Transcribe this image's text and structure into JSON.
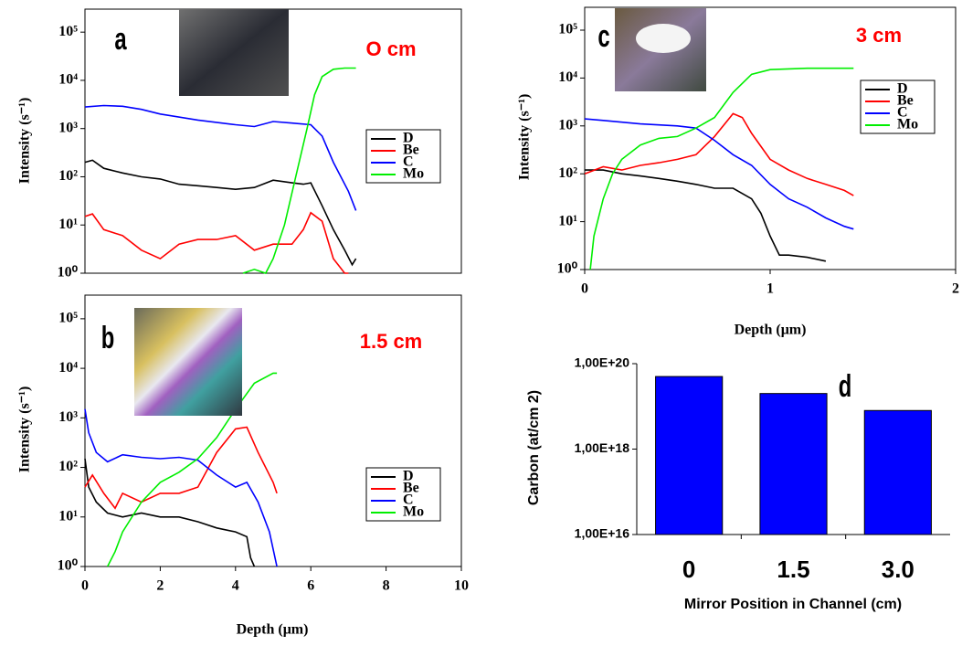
{
  "chart_data": [
    {
      "type": "line",
      "ylog": true,
      "annotations": [
        "a",
        "O cm"
      ],
      "ylabel": "Intensity (s⁻¹)",
      "xlim": [
        0,
        10
      ],
      "ylim": [
        1,
        300000
      ],
      "yticks": [
        {
          "value": 1,
          "label": "10⁰"
        },
        {
          "value": 10,
          "label": "10¹"
        },
        {
          "value": 100,
          "label": "10²"
        },
        {
          "value": 1000,
          "label": "10³"
        },
        {
          "value": 10000,
          "label": "10⁴"
        },
        {
          "value": 100000,
          "label": "10⁵"
        }
      ],
      "series": [
        {
          "name": "D",
          "color": "#000000",
          "x": [
            0,
            0.2,
            0.5,
            1,
            1.5,
            2,
            2.5,
            3,
            3.5,
            4,
            4.5,
            5,
            5.5,
            5.8,
            6,
            6.3,
            6.6,
            6.9,
            7.1,
            7.2
          ],
          "values": [
            200,
            220,
            150,
            120,
            100,
            90,
            70,
            65,
            60,
            55,
            60,
            85,
            75,
            70,
            75,
            25,
            8,
            3,
            1.5,
            2
          ]
        },
        {
          "name": "Be",
          "color": "#ff0000",
          "x": [
            0,
            0.2,
            0.5,
            1,
            1.5,
            2,
            2.5,
            3,
            3.5,
            4,
            4.5,
            5,
            5.5,
            5.8,
            6,
            6.3,
            6.6,
            6.9,
            7
          ],
          "values": [
            15,
            17,
            8,
            6,
            3,
            2,
            4,
            5,
            5,
            6,
            3,
            4,
            4,
            8,
            18,
            12,
            2,
            1,
            1
          ]
        },
        {
          "name": "C",
          "color": "#0000ff",
          "x": [
            0,
            0.5,
            1,
            1.5,
            2,
            3,
            4,
            4.5,
            5,
            5.5,
            6,
            6.3,
            6.6,
            7,
            7.2
          ],
          "values": [
            2800,
            3000,
            2900,
            2500,
            2000,
            1500,
            1200,
            1100,
            1400,
            1300,
            1200,
            700,
            200,
            50,
            20
          ]
        },
        {
          "name": "Mo",
          "color": "#00ee00",
          "x": [
            4.2,
            4.5,
            4.8,
            5,
            5.3,
            5.6,
            5.9,
            6.1,
            6.3,
            6.6,
            6.9,
            7.2
          ],
          "values": [
            1,
            1.2,
            1,
            2,
            10,
            100,
            1000,
            5000,
            12000,
            17000,
            18000,
            18000
          ]
        }
      ]
    },
    {
      "type": "line",
      "ylog": true,
      "annotations": [
        "b",
        "1.5 cm"
      ],
      "ylabel": "Intensity (s⁻¹)",
      "xlabel": "Depth (μm)",
      "xlim": [
        0,
        10
      ],
      "xticks": [
        0,
        2,
        4,
        6,
        8,
        10
      ],
      "ylim": [
        1,
        300000
      ],
      "yticks": [
        {
          "value": 1,
          "label": "10⁰"
        },
        {
          "value": 10,
          "label": "10¹"
        },
        {
          "value": 100,
          "label": "10²"
        },
        {
          "value": 1000,
          "label": "10³"
        },
        {
          "value": 10000,
          "label": "10⁴"
        },
        {
          "value": 100000,
          "label": "10⁵"
        }
      ],
      "series": [
        {
          "name": "D",
          "color": "#000000",
          "x": [
            0,
            0.1,
            0.3,
            0.6,
            1,
            1.5,
            2,
            2.5,
            3,
            3.5,
            4,
            4.3,
            4.4,
            4.5
          ],
          "values": [
            150,
            40,
            20,
            12,
            10,
            12,
            10,
            10,
            8,
            6,
            5,
            4,
            1.5,
            1
          ]
        },
        {
          "name": "Be",
          "color": "#ff0000",
          "x": [
            0,
            0.2,
            0.5,
            0.8,
            1,
            1.5,
            2,
            2.5,
            3,
            3.5,
            4,
            4.3,
            4.6,
            5,
            5.1
          ],
          "values": [
            40,
            70,
            30,
            15,
            30,
            20,
            30,
            30,
            40,
            200,
            600,
            650,
            200,
            50,
            30
          ]
        },
        {
          "name": "C",
          "color": "#0000ff",
          "x": [
            0,
            0.1,
            0.3,
            0.6,
            1,
            1.5,
            2,
            2.5,
            3,
            3.5,
            4,
            4.3,
            4.6,
            4.9,
            5.1
          ],
          "values": [
            1500,
            500,
            200,
            130,
            180,
            160,
            150,
            160,
            140,
            70,
            40,
            50,
            20,
            5,
            1
          ]
        },
        {
          "name": "Mo",
          "color": "#00ee00",
          "x": [
            0.6,
            0.8,
            1,
            1.5,
            2,
            2.5,
            3,
            3.5,
            4,
            4.5,
            5,
            5.1
          ],
          "values": [
            1,
            2,
            5,
            20,
            50,
            80,
            150,
            400,
            1500,
            5000,
            8000,
            8000
          ]
        }
      ]
    },
    {
      "type": "line",
      "ylog": true,
      "annotations": [
        "c",
        "3 cm"
      ],
      "ylabel": "Intensity (s⁻¹)",
      "xlabel": "Depth (μm)",
      "xlim": [
        0,
        2
      ],
      "xticks": [
        0,
        1,
        2
      ],
      "ylim": [
        1,
        300000
      ],
      "yticks": [
        {
          "value": 1,
          "label": "10⁰"
        },
        {
          "value": 10,
          "label": "10¹"
        },
        {
          "value": 100,
          "label": "10²"
        },
        {
          "value": 1000,
          "label": "10³"
        },
        {
          "value": 10000,
          "label": "10⁴"
        },
        {
          "value": 100000,
          "label": "10⁵"
        }
      ],
      "series": [
        {
          "name": "D",
          "color": "#000000",
          "x": [
            0,
            0.1,
            0.2,
            0.3,
            0.4,
            0.5,
            0.6,
            0.7,
            0.8,
            0.9,
            0.95,
            1,
            1.05,
            1.1,
            1.2,
            1.3
          ],
          "values": [
            120,
            120,
            100,
            90,
            80,
            70,
            60,
            50,
            50,
            30,
            15,
            5,
            2,
            2,
            1.8,
            1.5
          ]
        },
        {
          "name": "Be",
          "color": "#ff0000",
          "x": [
            0,
            0.1,
            0.2,
            0.3,
            0.4,
            0.5,
            0.6,
            0.7,
            0.8,
            0.85,
            0.9,
            1,
            1.1,
            1.2,
            1.3,
            1.4,
            1.45
          ],
          "values": [
            100,
            140,
            120,
            150,
            170,
            200,
            250,
            600,
            1800,
            1500,
            700,
            200,
            120,
            80,
            60,
            45,
            35
          ]
        },
        {
          "name": "C",
          "color": "#0000ff",
          "x": [
            0,
            0.1,
            0.2,
            0.3,
            0.4,
            0.5,
            0.6,
            0.7,
            0.8,
            0.9,
            1,
            1.1,
            1.2,
            1.3,
            1.4,
            1.45
          ],
          "values": [
            1400,
            1300,
            1200,
            1100,
            1050,
            1000,
            900,
            500,
            250,
            150,
            60,
            30,
            20,
            12,
            8,
            7
          ]
        },
        {
          "name": "Mo",
          "color": "#00ee00",
          "x": [
            0.03,
            0.05,
            0.1,
            0.15,
            0.2,
            0.3,
            0.4,
            0.5,
            0.6,
            0.7,
            0.8,
            0.9,
            1,
            1.2,
            1.45
          ],
          "values": [
            1,
            5,
            30,
            100,
            200,
            400,
            550,
            600,
            900,
            1500,
            5000,
            12000,
            15000,
            16000,
            16000
          ]
        }
      ]
    },
    {
      "type": "bar",
      "ylog": true,
      "annotations": [
        "d"
      ],
      "ylabel": "Carbon (at/cm 2)",
      "xlabel": "Mirror Position in Channel (cm)",
      "categories": [
        "0",
        "1.5",
        "3.0"
      ],
      "values": [
        5e+19,
        2e+19,
        8e+18
      ],
      "color": "#0000ff",
      "ylim": [
        1e+16,
        1e+20
      ],
      "yticks": [
        {
          "value": 1e+16,
          "label": "1,00E+16"
        },
        {
          "value": 1e+18,
          "label": "1,00E+18"
        },
        {
          "value": 1e+20,
          "label": "1,00E+20"
        }
      ]
    }
  ]
}
